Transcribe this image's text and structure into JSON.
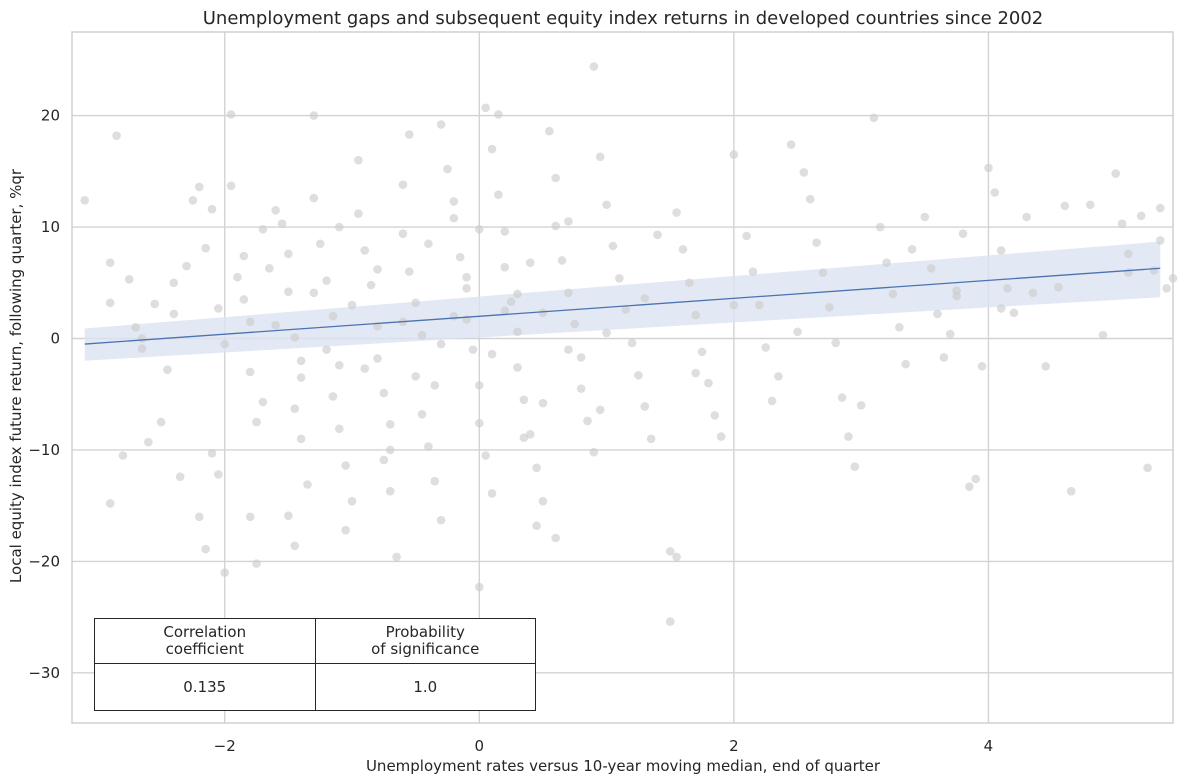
{
  "chart_data": {
    "type": "scatter",
    "title": "Unemployment gaps and subsequent equity index returns in developed countries since 2002",
    "xlabel": "Unemployment rates versus 10-year moving median, end of quarter",
    "ylabel": "Local equity index future return, following quarter, %qr",
    "xlim": [
      -3.2,
      5.45
    ],
    "ylim": [
      -34.5,
      27.5
    ],
    "xticks": [
      -2,
      0,
      2,
      4
    ],
    "yticks": [
      -30,
      -20,
      -10,
      0,
      10,
      20
    ],
    "xtick_labels": [
      "−2",
      "0",
      "2",
      "4"
    ],
    "ytick_labels": [
      "−30",
      "−20",
      "−10",
      "0",
      "10",
      "20"
    ],
    "grid": true,
    "colors": {
      "points": "#cccccc",
      "line": "#4c72b0",
      "band": "#dbe3f1",
      "grid": "#d3d3d3"
    },
    "regression": {
      "x": [
        -3.1,
        5.35
      ],
      "y": [
        -0.5,
        6.3
      ],
      "band_lower": [
        -2.0,
        3.7
      ],
      "band_upper": [
        0.9,
        8.7
      ]
    },
    "points": [
      [
        -3.1,
        12.4
      ],
      [
        -2.85,
        18.2
      ],
      [
        -2.9,
        6.8
      ],
      [
        -2.9,
        3.2
      ],
      [
        -2.75,
        5.3
      ],
      [
        -2.8,
        -10.5
      ],
      [
        -2.9,
        -14.8
      ],
      [
        -2.7,
        1.0
      ],
      [
        -2.65,
        -0.9
      ],
      [
        -2.6,
        -9.3
      ],
      [
        -2.55,
        3.1
      ],
      [
        -2.5,
        -7.5
      ],
      [
        -2.45,
        -2.8
      ],
      [
        -2.35,
        -12.4
      ],
      [
        -2.4,
        5.0
      ],
      [
        -2.3,
        6.5
      ],
      [
        -2.25,
        12.4
      ],
      [
        -2.2,
        13.6
      ],
      [
        -2.15,
        8.1
      ],
      [
        -2.1,
        11.6
      ],
      [
        -2.05,
        2.7
      ],
      [
        -2.1,
        -10.3
      ],
      [
        -2.05,
        -12.2
      ],
      [
        -2.15,
        -18.9
      ],
      [
        -2.0,
        -21.0
      ],
      [
        -1.95,
        20.1
      ],
      [
        -1.95,
        13.7
      ],
      [
        -1.9,
        5.5
      ],
      [
        -1.85,
        3.5
      ],
      [
        -1.8,
        1.5
      ],
      [
        -1.8,
        -3.0
      ],
      [
        -1.75,
        -7.5
      ],
      [
        -1.8,
        -16.0
      ],
      [
        -1.75,
        -20.2
      ],
      [
        -1.7,
        9.8
      ],
      [
        -1.65,
        6.3
      ],
      [
        -1.6,
        11.5
      ],
      [
        -1.55,
        10.3
      ],
      [
        -1.5,
        7.6
      ],
      [
        -1.5,
        4.2
      ],
      [
        -1.45,
        0.1
      ],
      [
        -1.4,
        -3.5
      ],
      [
        -1.45,
        -6.3
      ],
      [
        -1.4,
        -9.0
      ],
      [
        -1.35,
        -13.1
      ],
      [
        -1.5,
        -15.9
      ],
      [
        -1.45,
        -18.6
      ],
      [
        -1.3,
        20.0
      ],
      [
        -1.3,
        12.6
      ],
      [
        -1.25,
        8.5
      ],
      [
        -1.2,
        5.2
      ],
      [
        -1.15,
        2.0
      ],
      [
        -1.1,
        -2.4
      ],
      [
        -1.15,
        -5.2
      ],
      [
        -1.1,
        -8.1
      ],
      [
        -1.05,
        -11.4
      ],
      [
        -1.0,
        -14.6
      ],
      [
        -1.05,
        -17.2
      ],
      [
        -0.95,
        16.0
      ],
      [
        -0.95,
        11.2
      ],
      [
        -0.9,
        7.9
      ],
      [
        -0.85,
        4.8
      ],
      [
        -0.8,
        1.1
      ],
      [
        -0.8,
        -1.8
      ],
      [
        -0.75,
        -4.9
      ],
      [
        -0.7,
        -7.7
      ],
      [
        -0.75,
        -10.9
      ],
      [
        -0.7,
        -13.7
      ],
      [
        -0.65,
        -19.6
      ],
      [
        -0.6,
        13.8
      ],
      [
        -0.6,
        9.4
      ],
      [
        -0.55,
        6.0
      ],
      [
        -0.5,
        3.2
      ],
      [
        -0.45,
        0.3
      ],
      [
        -0.5,
        -3.4
      ],
      [
        -0.45,
        -6.8
      ],
      [
        -0.4,
        -9.7
      ],
      [
        -0.35,
        -12.8
      ],
      [
        -0.3,
        -16.3
      ],
      [
        -0.3,
        19.2
      ],
      [
        -0.25,
        15.2
      ],
      [
        -0.2,
        10.8
      ],
      [
        -0.15,
        7.3
      ],
      [
        -0.1,
        4.5
      ],
      [
        -0.1,
        1.7
      ],
      [
        -0.05,
        -1.0
      ],
      [
        0.0,
        -4.2
      ],
      [
        0.0,
        -7.6
      ],
      [
        0.05,
        -10.5
      ],
      [
        0.1,
        -13.9
      ],
      [
        0.0,
        -22.3
      ],
      [
        0.05,
        20.7
      ],
      [
        0.1,
        17.0
      ],
      [
        0.15,
        12.9
      ],
      [
        0.2,
        9.6
      ],
      [
        0.2,
        6.4
      ],
      [
        0.25,
        3.3
      ],
      [
        0.3,
        0.6
      ],
      [
        0.3,
        -2.6
      ],
      [
        0.35,
        -5.5
      ],
      [
        0.4,
        -8.6
      ],
      [
        0.45,
        -11.6
      ],
      [
        0.5,
        -14.6
      ],
      [
        0.45,
        -16.8
      ],
      [
        0.55,
        18.6
      ],
      [
        0.6,
        14.4
      ],
      [
        0.6,
        10.1
      ],
      [
        0.65,
        7.0
      ],
      [
        0.7,
        4.1
      ],
      [
        0.75,
        1.3
      ],
      [
        0.8,
        -1.7
      ],
      [
        0.8,
        -4.5
      ],
      [
        0.85,
        -7.4
      ],
      [
        0.9,
        -10.2
      ],
      [
        0.6,
        -17.9
      ],
      [
        0.9,
        24.4
      ],
      [
        0.95,
        16.3
      ],
      [
        1.0,
        12.0
      ],
      [
        1.05,
        8.3
      ],
      [
        1.1,
        5.4
      ],
      [
        1.15,
        2.6
      ],
      [
        1.2,
        -0.4
      ],
      [
        1.25,
        -3.3
      ],
      [
        1.3,
        -6.1
      ],
      [
        1.35,
        -9.0
      ],
      [
        1.5,
        -19.1
      ],
      [
        1.55,
        -19.6
      ],
      [
        1.5,
        -25.4
      ],
      [
        1.55,
        11.3
      ],
      [
        1.6,
        8.0
      ],
      [
        1.65,
        5.0
      ],
      [
        1.7,
        2.1
      ],
      [
        1.75,
        -1.2
      ],
      [
        1.8,
        -4.0
      ],
      [
        1.85,
        -6.9
      ],
      [
        1.9,
        -8.8
      ],
      [
        2.0,
        16.5
      ],
      [
        2.1,
        9.2
      ],
      [
        2.15,
        6.0
      ],
      [
        2.2,
        3.0
      ],
      [
        2.25,
        -0.8
      ],
      [
        2.3,
        -5.6
      ],
      [
        2.45,
        17.4
      ],
      [
        2.55,
        14.9
      ],
      [
        2.6,
        12.5
      ],
      [
        2.65,
        8.6
      ],
      [
        2.7,
        5.9
      ],
      [
        2.75,
        2.8
      ],
      [
        2.8,
        -0.4
      ],
      [
        2.85,
        -5.3
      ],
      [
        2.9,
        -8.8
      ],
      [
        2.95,
        -11.5
      ],
      [
        3.1,
        19.8
      ],
      [
        3.15,
        10.0
      ],
      [
        3.2,
        6.8
      ],
      [
        3.25,
        4.0
      ],
      [
        3.3,
        1.0
      ],
      [
        3.35,
        -2.3
      ],
      [
        3.4,
        8.0
      ],
      [
        3.5,
        10.9
      ],
      [
        3.55,
        6.3
      ],
      [
        3.6,
        2.2
      ],
      [
        3.65,
        -1.7
      ],
      [
        3.7,
        0.4
      ],
      [
        3.75,
        4.3
      ],
      [
        3.8,
        9.4
      ],
      [
        3.85,
        -13.3
      ],
      [
        3.9,
        -12.6
      ],
      [
        3.95,
        -2.5
      ],
      [
        4.0,
        15.3
      ],
      [
        4.05,
        13.1
      ],
      [
        4.1,
        7.9
      ],
      [
        4.15,
        4.5
      ],
      [
        4.2,
        2.3
      ],
      [
        4.3,
        10.9
      ],
      [
        4.35,
        4.1
      ],
      [
        4.45,
        -2.5
      ],
      [
        4.55,
        4.6
      ],
      [
        4.6,
        11.9
      ],
      [
        4.65,
        -13.7
      ],
      [
        4.8,
        12.0
      ],
      [
        4.9,
        0.3
      ],
      [
        5.0,
        14.8
      ],
      [
        5.05,
        10.3
      ],
      [
        5.1,
        7.6
      ],
      [
        5.1,
        5.9
      ],
      [
        5.2,
        11.0
      ],
      [
        5.25,
        -11.6
      ],
      [
        5.3,
        6.1
      ],
      [
        5.35,
        11.7
      ],
      [
        5.4,
        4.5
      ],
      [
        5.45,
        5.4
      ],
      [
        5.35,
        8.8
      ],
      [
        3.75,
        3.8
      ],
      [
        4.1,
        2.7
      ],
      [
        2.0,
        3.0
      ],
      [
        -0.2,
        2.0
      ],
      [
        -0.1,
        5.5
      ],
      [
        0.1,
        -1.4
      ],
      [
        0.2,
        2.5
      ],
      [
        -0.3,
        -0.5
      ],
      [
        0.3,
        4.0
      ],
      [
        -0.6,
        1.5
      ],
      [
        -0.8,
        6.2
      ],
      [
        -1.0,
        3.0
      ],
      [
        -1.2,
        -1.0
      ],
      [
        0.5,
        2.3
      ],
      [
        0.7,
        -1.0
      ],
      [
        -0.4,
        8.5
      ],
      [
        0.4,
        6.8
      ],
      [
        -1.6,
        1.2
      ],
      [
        -2.0,
        -0.5
      ],
      [
        -1.3,
        4.1
      ],
      [
        1.0,
        0.5
      ],
      [
        1.3,
        3.6
      ],
      [
        -0.9,
        -2.7
      ],
      [
        0.0,
        9.8
      ],
      [
        -2.4,
        2.2
      ],
      [
        -2.65,
        0.0
      ],
      [
        -1.7,
        -5.7
      ],
      [
        0.95,
        -6.4
      ],
      [
        1.4,
        9.3
      ],
      [
        -0.2,
        12.3
      ],
      [
        0.35,
        -8.9
      ],
      [
        -1.85,
        7.4
      ],
      [
        -0.55,
        18.3
      ],
      [
        0.15,
        20.1
      ],
      [
        2.35,
        -3.4
      ],
      [
        3.0,
        -6.0
      ],
      [
        -2.2,
        -16.0
      ],
      [
        -1.4,
        -2.0
      ],
      [
        0.7,
        10.5
      ],
      [
        -0.35,
        -4.2
      ],
      [
        1.7,
        -3.1
      ],
      [
        -1.1,
        10.0
      ],
      [
        0.5,
        -5.8
      ],
      [
        2.5,
        0.6
      ],
      [
        -0.7,
        -10.0
      ]
    ]
  },
  "stats_table": {
    "headers": [
      "Correlation\ncoefficient",
      "Probability\nof significance"
    ],
    "values": [
      "0.135",
      "1.0"
    ]
  }
}
